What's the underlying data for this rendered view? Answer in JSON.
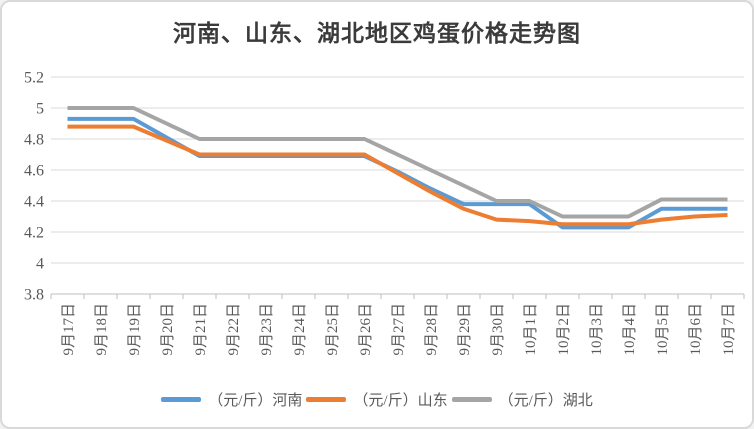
{
  "chart_data": {
    "type": "line",
    "title": "河南、山东、湖北地区鸡蛋价格走势图",
    "xlabel": "",
    "ylabel": "",
    "ylim": [
      3.8,
      5.2
    ],
    "ytick_step": 0.2,
    "yticks": [
      3.8,
      4.0,
      4.2,
      4.4,
      4.6,
      4.8,
      5.0,
      5.2
    ],
    "grid": true,
    "legend_position": "bottom",
    "grid_color": "#d9d9d9",
    "axis_color": "#bfbfbf",
    "label_color": "#595959",
    "categories": [
      "9月17日",
      "9月18日",
      "9月19日",
      "9月20日",
      "9月21日",
      "9月22日",
      "9月23日",
      "9月24日",
      "9月25日",
      "9月26日",
      "9月27日",
      "9月28日",
      "9月29日",
      "9月30日",
      "10月1日",
      "10月2日",
      "10月3日",
      "10月4日",
      "10月5日",
      "10月6日",
      "10月7日"
    ],
    "series": [
      {
        "key": "henan",
        "name": "（元/斤）河南",
        "color": "#5B9BD5",
        "values": [
          4.93,
          4.93,
          4.93,
          4.81,
          4.69,
          4.69,
          4.69,
          4.69,
          4.69,
          4.69,
          4.59,
          4.48,
          4.38,
          4.38,
          4.38,
          4.23,
          4.23,
          4.23,
          4.35,
          4.35,
          4.35
        ]
      },
      {
        "key": "shandong",
        "name": "（元/斤）山东",
        "color": "#ED7D31",
        "values": [
          4.88,
          4.88,
          4.88,
          4.79,
          4.7,
          4.7,
          4.7,
          4.7,
          4.7,
          4.7,
          4.58,
          4.46,
          4.35,
          4.28,
          4.27,
          4.25,
          4.25,
          4.25,
          4.28,
          4.3,
          4.31
        ]
      },
      {
        "key": "hubei",
        "name": "（元/斤）湖北",
        "color": "#A5A5A5",
        "values": [
          5.0,
          5.0,
          5.0,
          4.9,
          4.8,
          4.8,
          4.8,
          4.8,
          4.8,
          4.8,
          4.7,
          4.6,
          4.5,
          4.4,
          4.4,
          4.3,
          4.3,
          4.3,
          4.41,
          4.41,
          4.41
        ]
      }
    ]
  }
}
